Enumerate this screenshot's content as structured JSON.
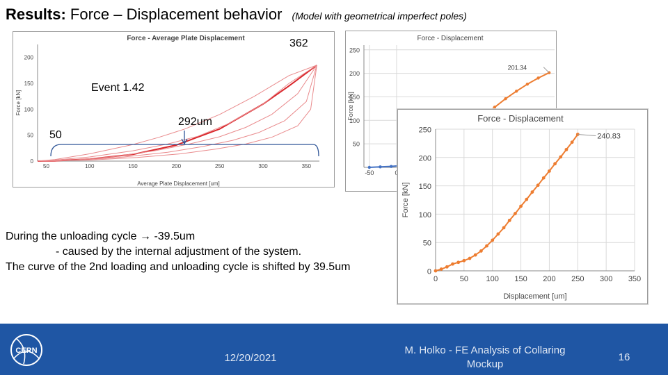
{
  "slide": {
    "title_bold": "Results:",
    "title_rest": "Force – Displacement behavior",
    "title_sub": "(Model with geometrical imperfect poles)",
    "annotation_362": "362",
    "annotation_event": "Event 1.42",
    "annotation_292": "292um",
    "annotation_50": "50",
    "unloading_line1": "During the unloading cycle → -39.5um",
    "unloading_line2": "- caused by the internal adjustment of the system.",
    "unloading_line3": "The curve of the 2nd loading and unloading cycle is shifted by 39.5um"
  },
  "footer": {
    "logo_text": "CERN",
    "date": "12/20/2021",
    "author": "M. Holko - FE Analysis of Collaring Mockup",
    "page_number": "16"
  },
  "colors": {
    "red_curve": "#d9262b",
    "orange_series": "#ed7d31",
    "blue_series": "#4472c4",
    "footer_bg": "#1f56a4"
  },
  "chart_data": [
    {
      "id": "avg-plate",
      "type": "line",
      "title": "Force - Average Plate Displacement",
      "xlabel": "Average Plate Displacement [um]",
      "ylabel": "Force [kN]",
      "xlim": [
        40,
        365
      ],
      "ylim": [
        0,
        225
      ],
      "xticks": [
        50,
        100,
        150,
        200,
        250,
        300,
        350
      ],
      "yticks": [
        0,
        50,
        100,
        150,
        200
      ],
      "grid": false,
      "series": [
        {
          "role": "loading",
          "x": [
            40,
            60,
            100,
            150,
            200,
            250,
            300,
            330,
            362
          ],
          "y": [
            0,
            0.5,
            4,
            13,
            31,
            62,
            110,
            145,
            185
          ]
        },
        {
          "role": "unloading",
          "x": [
            362,
            330,
            290,
            250,
            210,
            180,
            150,
            100,
            60,
            40
          ],
          "y": [
            185,
            165,
            125,
            90,
            62,
            46,
            32,
            14,
            3,
            0
          ]
        },
        {
          "role": "unloading",
          "x": [
            362,
            330,
            300,
            260,
            225,
            190,
            150,
            100,
            60,
            40
          ],
          "y": [
            185,
            150,
            110,
            72,
            48,
            33,
            20,
            8,
            2,
            0
          ]
        },
        {
          "role": "unloading",
          "x": [
            362,
            340,
            310,
            280,
            250,
            215,
            175,
            130,
            80,
            40
          ],
          "y": [
            185,
            130,
            90,
            65,
            47,
            33,
            20,
            9,
            2,
            0
          ]
        },
        {
          "role": "unloading",
          "x": [
            362,
            350,
            325,
            295,
            265,
            230,
            190,
            140,
            90,
            40
          ],
          "y": [
            185,
            115,
            78,
            55,
            40,
            28,
            17,
            8,
            2,
            0
          ]
        },
        {
          "role": "unloading",
          "x": [
            362,
            355,
            340,
            310,
            280,
            245,
            205,
            155,
            100,
            40
          ],
          "y": [
            185,
            100,
            68,
            46,
            33,
            23,
            14,
            7,
            2,
            0
          ]
        }
      ]
    },
    {
      "id": "force-disp-back",
      "type": "line",
      "title": "Force - Displacement",
      "xlabel": "",
      "ylabel": "Force [kN]",
      "xlim": [
        -60,
        290
      ],
      "ylim": [
        0,
        260
      ],
      "xticks": [
        -50,
        0
      ],
      "yticks": [
        50,
        100,
        150,
        200,
        250
      ],
      "grid": true,
      "peak_label": "201.34",
      "series": [
        {
          "color": "orange",
          "x": [
            40,
            60,
            80,
            100,
            120,
            140,
            160,
            180,
            200,
            220,
            240,
            260,
            280
          ],
          "y": [
            8,
            20,
            37,
            55,
            73,
            92,
            110,
            128,
            146,
            162,
            177,
            190,
            201.34
          ]
        },
        {
          "color": "blue",
          "x": [
            -50,
            -30,
            -10,
            10,
            30
          ],
          "y": [
            0,
            1,
            2,
            4,
            6
          ]
        }
      ]
    },
    {
      "id": "force-disp-front",
      "type": "line",
      "title": "Force - Displacement",
      "xlabel": "Displacement [um]",
      "ylabel": "Force [kN]",
      "xlim": [
        0,
        350
      ],
      "ylim": [
        0,
        250
      ],
      "xticks": [
        0,
        50,
        100,
        150,
        200,
        250,
        300,
        350
      ],
      "yticks": [
        0,
        50,
        100,
        150,
        200,
        250
      ],
      "grid": true,
      "peak_label": "240.83",
      "series": [
        {
          "color": "orange",
          "x": [
            0,
            10,
            20,
            30,
            40,
            50,
            60,
            70,
            80,
            90,
            100,
            110,
            120,
            130,
            140,
            150,
            160,
            170,
            180,
            190,
            200,
            210,
            220,
            230,
            240,
            250
          ],
          "y": [
            0,
            3,
            7,
            12,
            15,
            18,
            22,
            28,
            35,
            44,
            54,
            65,
            76,
            89,
            101,
            114,
            126,
            139,
            151,
            164,
            176,
            189,
            201,
            214,
            227,
            240.83
          ]
        }
      ]
    }
  ]
}
